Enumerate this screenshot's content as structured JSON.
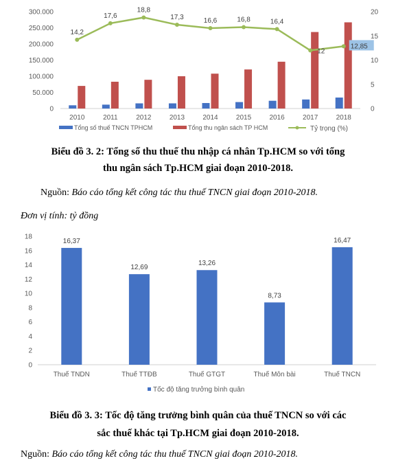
{
  "chart_data": [
    {
      "type": "bar",
      "categories": [
        "2010",
        "2011",
        "2012",
        "2013",
        "2014",
        "2015",
        "2016",
        "2017",
        "2018"
      ],
      "series": [
        {
          "name": "Tổng số thuế TNCN TPHCM",
          "kind": "bar",
          "axis": "left",
          "color": "#4472C4",
          "values": [
            10000,
            12000,
            16000,
            16000,
            17000,
            20000,
            24000,
            28000,
            34000
          ]
        },
        {
          "name": "Tổng thu ngân sách TP HCM",
          "kind": "bar",
          "axis": "left",
          "color": "#C0504D",
          "values": [
            70000,
            83000,
            89000,
            100000,
            108000,
            121000,
            145000,
            237000,
            267000
          ]
        },
        {
          "name": "Tỷ trọng (%)",
          "kind": "line",
          "axis": "right",
          "color": "#9BBB59",
          "values": [
            14.2,
            17.6,
            18.8,
            17.3,
            16.6,
            16.8,
            16.4,
            12,
            12.85
          ],
          "labels": [
            "14,2",
            "17,6",
            "18,8",
            "17,3",
            "16,6",
            "16,8",
            "16,4",
            "12",
            "12,85"
          ]
        }
      ],
      "ylim": [
        0,
        300000
      ],
      "y_ticks": [
        "0",
        "50.000",
        "100.000",
        "150.000",
        "200.000",
        "250.000",
        "300.000"
      ],
      "y2lim": [
        0,
        20
      ],
      "y2_ticks": [
        "0",
        "5",
        "10",
        "15",
        "20"
      ],
      "legend": "bottom",
      "grid": false
    },
    {
      "type": "bar",
      "categories": [
        "Thuế TNDN",
        "Thuế TTĐB",
        "Thuế GTGT",
        "Thuế Môn bài",
        "Thuế TNCN"
      ],
      "series": [
        {
          "name": "Tốc độ tăng trưởng bình quân",
          "color": "#4472C4",
          "values": [
            16.37,
            12.69,
            13.26,
            8.73,
            16.47
          ],
          "labels": [
            "16,37",
            "12,69",
            "13,26",
            "8,73",
            "16,47"
          ]
        }
      ],
      "ylim": [
        0,
        18
      ],
      "y_ticks": [
        "0",
        "2",
        "4",
        "6",
        "8",
        "10",
        "12",
        "14",
        "16",
        "18"
      ],
      "legend": "bottom",
      "grid": false
    }
  ],
  "captions": {
    "chart1_line1": "Biểu đồ 3. 2: Tổng số thu thuế thu nhập cá nhân Tp.HCM so với tổng",
    "chart1_line2": "thu ngân sách Tp.HCM giai đoạn 2010-2018.",
    "chart2_line1": "Biểu đồ 3. 3: Tốc độ tăng trưởng bình quân của thuế TNCN so với các",
    "chart2_line2": "sắc thuế khác tại Tp.HCM giai đoạn 2010-2018."
  },
  "source_label": "Nguồn: ",
  "source_text": "Báo cáo tổng kết công tác thu thuế TNCN giai đoạn 2010-2018.",
  "unit_text": "Đơn vị tính: tỷ đồng"
}
